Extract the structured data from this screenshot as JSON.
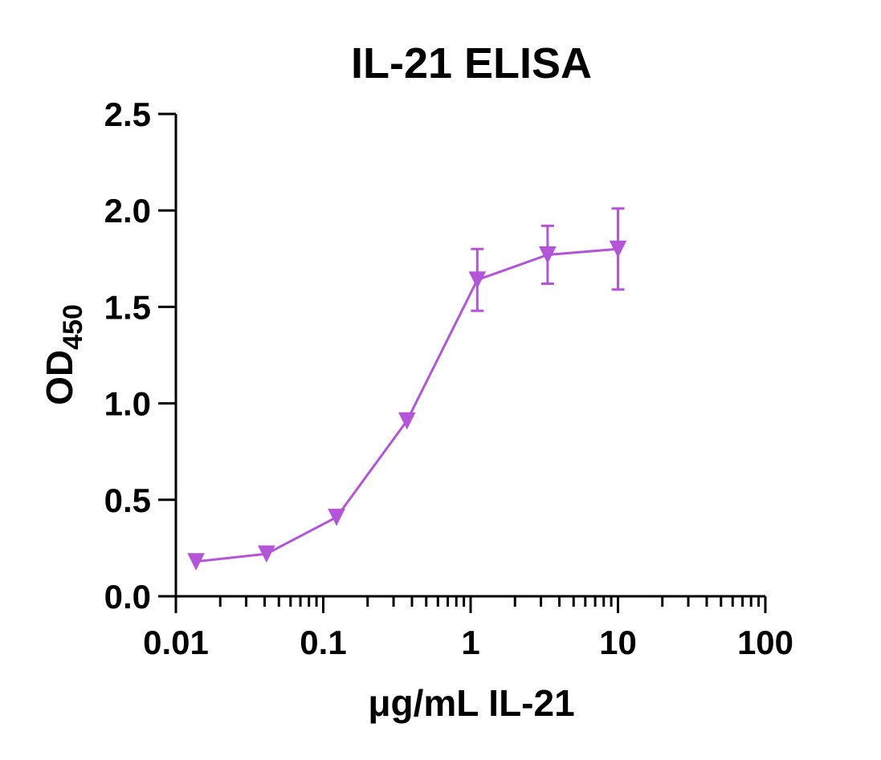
{
  "chart_data": {
    "type": "line",
    "title": "IL-21 ELISA",
    "xlabel": "μg/mL IL-21",
    "ylabel_main": "OD",
    "ylabel_sub": "450",
    "xscale": "log",
    "xlim": [
      0.01,
      100
    ],
    "ylim": [
      0,
      2.5
    ],
    "x_tick_labels": [
      "0.01",
      "0.1",
      "1",
      "10",
      "100"
    ],
    "y_tick_labels": [
      "0.0",
      "0.5",
      "1.0",
      "1.5",
      "2.0",
      "2.5"
    ],
    "grid": false,
    "legend": "none",
    "series_color": "#b455d9",
    "marker": "triangle-down",
    "series": [
      {
        "x": [
          0.0137,
          0.0412,
          0.123,
          0.37,
          1.11,
          3.33,
          10
        ],
        "y": [
          0.18,
          0.22,
          0.41,
          0.91,
          1.64,
          1.77,
          1.8
        ],
        "err": [
          0,
          0,
          0,
          0,
          0.16,
          0.15,
          0.21
        ]
      }
    ]
  }
}
